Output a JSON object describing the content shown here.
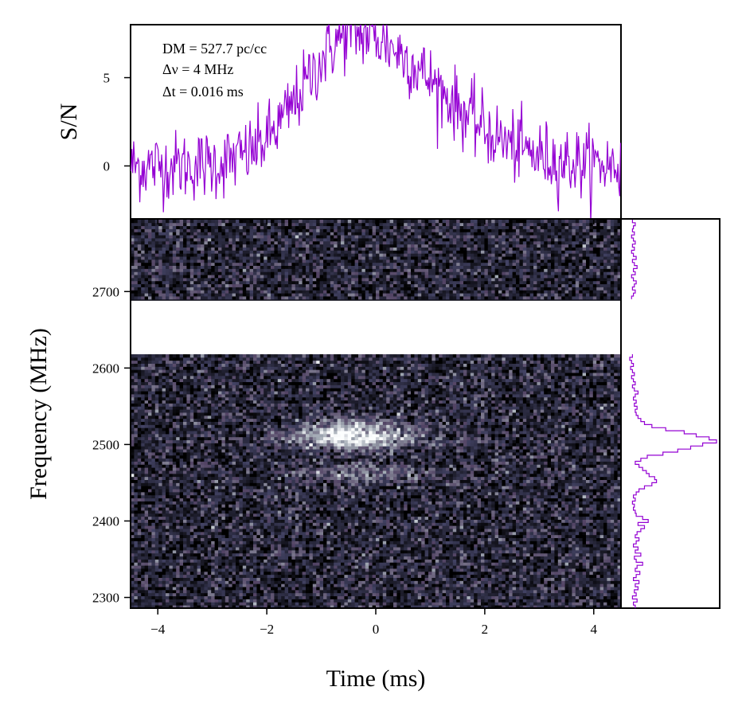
{
  "chart_data": {
    "type": "heatmap",
    "annotations": {
      "dm": "DM = 527.7 pc/cc",
      "dnu": "Δν = 4 MHz",
      "dt": "Δt = 0.016 ms"
    },
    "profile": {
      "ylabel": "S/N",
      "yticks": [
        0,
        5
      ],
      "ylim": [
        -3,
        8
      ],
      "xlim": [
        -4.5,
        4.5
      ],
      "color": "#9400d3",
      "pulse": {
        "peak_time_ms": -0.4,
        "peak_sn": 7.5,
        "rise_width_ms": 0.9,
        "decay_width_ms": 1.5,
        "noise_rms": 1.0,
        "n_bins": 560
      }
    },
    "waterfall": {
      "xlabel": "Time (ms)",
      "ylabel": "Frequency (MHz)",
      "xticks": [
        -4,
        -2,
        0,
        2,
        4
      ],
      "yticks": [
        2300,
        2400,
        2500,
        2600,
        2700
      ],
      "xlim": [
        -4.5,
        4.5
      ],
      "ylim": [
        2286,
        2795
      ],
      "masked_band_mhz": [
        2618,
        2688
      ],
      "colormap": "bone",
      "bright_components": [
        {
          "center_mhz": 2512,
          "center_ms": -0.4,
          "intensity": "strong"
        },
        {
          "center_mhz": 2462,
          "center_ms": -0.3,
          "intensity": "weak"
        }
      ]
    },
    "spectrum": {
      "color": "#9400d3",
      "channel_width_mhz": 4,
      "freq_mhz": [
        2288,
        2292,
        2296,
        2300,
        2304,
        2308,
        2312,
        2316,
        2320,
        2324,
        2328,
        2332,
        2336,
        2340,
        2344,
        2348,
        2352,
        2356,
        2360,
        2364,
        2368,
        2372,
        2376,
        2380,
        2384,
        2388,
        2392,
        2396,
        2400,
        2404,
        2408,
        2412,
        2416,
        2420,
        2424,
        2428,
        2432,
        2436,
        2440,
        2444,
        2448,
        2452,
        2456,
        2460,
        2464,
        2468,
        2472,
        2476,
        2480,
        2484,
        2488,
        2492,
        2496,
        2500,
        2504,
        2508,
        2512,
        2516,
        2520,
        2524,
        2528,
        2532,
        2536,
        2540,
        2544,
        2548,
        2552,
        2556,
        2560,
        2564,
        2568,
        2572,
        2576,
        2580,
        2584,
        2588,
        2592,
        2596,
        2600,
        2604,
        2608,
        2612,
        2616,
        2692,
        2696,
        2700,
        2704,
        2708,
        2712,
        2716,
        2720,
        2724,
        2728,
        2732,
        2736,
        2740,
        2744,
        2748,
        2752,
        2756,
        2760,
        2764,
        2768,
        2772,
        2776,
        2780,
        2784,
        2788,
        2792
      ],
      "power": [
        0.12,
        0.1,
        0.14,
        0.09,
        0.13,
        0.11,
        0.15,
        0.12,
        0.16,
        0.1,
        0.13,
        0.17,
        0.12,
        0.14,
        0.2,
        0.13,
        0.11,
        0.18,
        0.12,
        0.15,
        0.1,
        0.13,
        0.16,
        0.12,
        0.14,
        0.18,
        0.22,
        0.15,
        0.26,
        0.2,
        0.13,
        0.12,
        0.1,
        0.11,
        0.09,
        0.12,
        0.1,
        0.13,
        0.16,
        0.22,
        0.3,
        0.35,
        0.33,
        0.27,
        0.24,
        0.2,
        0.16,
        0.12,
        0.18,
        0.25,
        0.42,
        0.58,
        0.72,
        0.85,
        1.0,
        0.92,
        0.78,
        0.65,
        0.45,
        0.3,
        0.22,
        0.18,
        0.15,
        0.13,
        0.12,
        0.14,
        0.11,
        0.13,
        0.1,
        0.12,
        0.15,
        0.11,
        0.09,
        0.12,
        0.1,
        0.08,
        0.11,
        0.09,
        0.07,
        0.1,
        0.08,
        0.06,
        0.09,
        0.08,
        0.1,
        0.12,
        0.09,
        0.11,
        0.13,
        0.1,
        0.08,
        0.12,
        0.1,
        0.14,
        0.11,
        0.09,
        0.13,
        0.1,
        0.08,
        0.11,
        0.09,
        0.12,
        0.1,
        0.08,
        0.11,
        0.09,
        0.1,
        0.12,
        0.09
      ]
    }
  }
}
